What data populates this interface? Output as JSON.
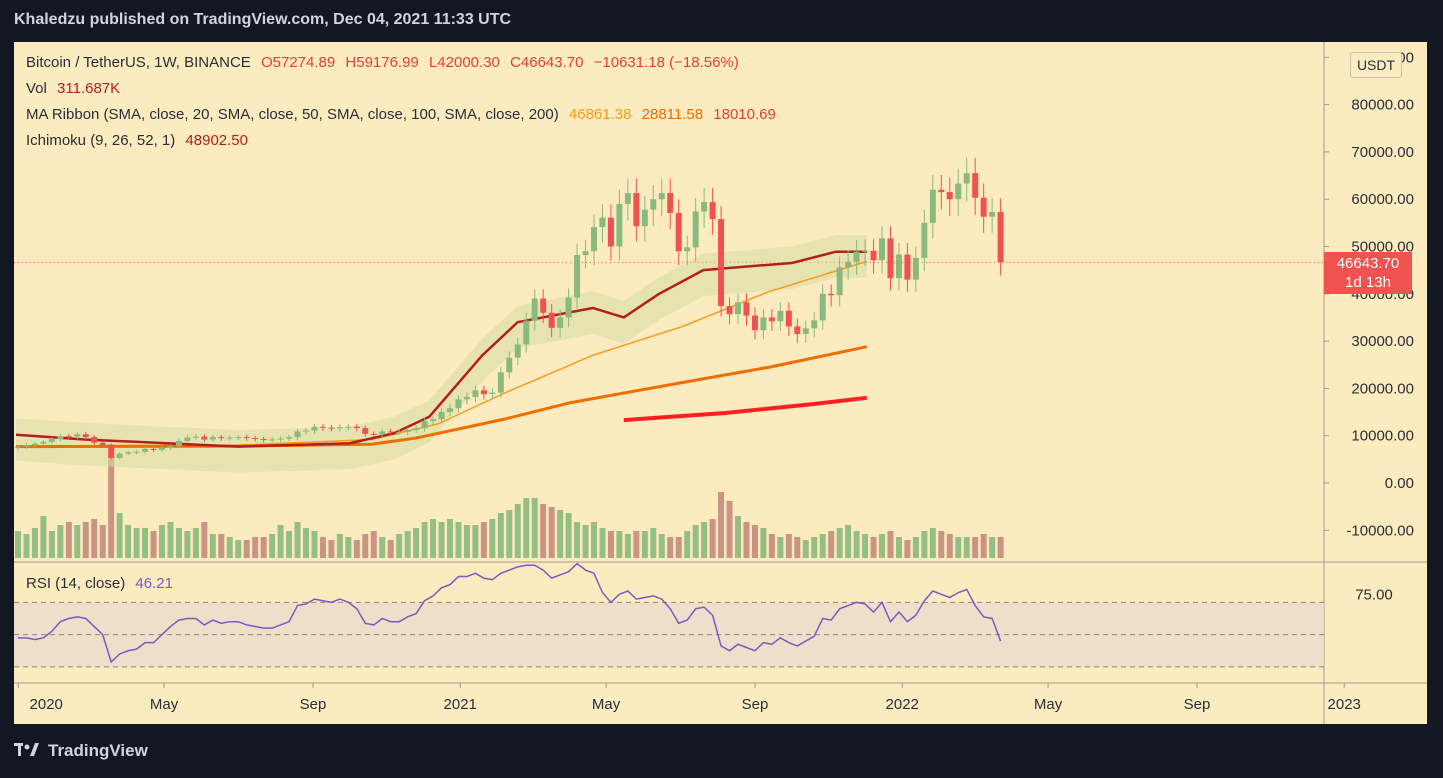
{
  "header": {
    "title": "Khaledzu published on TradingView.com, Dec 04, 2021 11:33 UTC"
  },
  "legend": {
    "symbol": "Bitcoin / TetherUS, 1W, BINANCE",
    "open": "O57274.89",
    "high": "H59176.99",
    "low": "L42000.30",
    "close": "C46643.70",
    "change": "−10631.18 (−18.56%)",
    "vol_label": "Vol",
    "vol_value": "311.687K",
    "ma_label": "MA Ribbon (SMA, close, 20, SMA, close, 50, SMA, close, 100, SMA, close, 200)",
    "ma_20": "46861.38",
    "ma_50": "28811.58",
    "ma_100": "18010.69",
    "ichimoku_label": "Ichimoku (9, 26, 52, 1)",
    "ichimoku_value": "48902.50",
    "rsi_label": "RSI (14, close)",
    "rsi_value": "46.21"
  },
  "currency_badge": "USDT",
  "price_badge": {
    "price": "46643.70",
    "countdown": "1d 13h"
  },
  "colors": {
    "up": "#89b97c",
    "down": "#ef5350",
    "ma20": "#f59b1a",
    "ma50": "#ef6c00",
    "ma100": "#ff1f1f",
    "ichimoku": "#b71c1c",
    "rsi": "#7e57c2",
    "background": "#fdebc0"
  },
  "chart_data": [
    {
      "type": "candlestick",
      "x_start": "2019-12-30",
      "x_step": "1 week",
      "ylim": [
        -15000,
        90000
      ],
      "y_ticks": [
        "90000.00",
        "80000.00",
        "70000.00",
        "60000.00",
        "50000.00",
        "40000.00",
        "30000.00",
        "20000.00",
        "10000.00",
        "0.00",
        "-10000.00"
      ],
      "x_ticks": [
        "2020",
        "May",
        "Sep",
        "2021",
        "May",
        "Sep",
        "2022",
        "May",
        "Sep",
        "2023"
      ],
      "close": [
        7700,
        8000,
        8300,
        8700,
        9300,
        9900,
        9800,
        10300,
        9700,
        8500,
        8000,
        5300,
        6200,
        6500,
        6600,
        7200,
        7000,
        7500,
        7800,
        8900,
        9600,
        9800,
        9200,
        9700,
        9500,
        9600,
        9700,
        9500,
        9300,
        9100,
        9200,
        9400,
        9700,
        10900,
        11100,
        11900,
        11700,
        11600,
        11800,
        11900,
        11600,
        10400,
        10300,
        10900,
        10800,
        10800,
        11200,
        11600,
        13100,
        13500,
        15000,
        15800,
        17700,
        18200,
        19600,
        18800,
        19100,
        23400,
        26500,
        29300,
        34300,
        39000,
        36000,
        32800,
        35000,
        39200,
        48200,
        49000,
        54100,
        56100,
        50000,
        59000,
        61300,
        54300,
        57800,
        60000,
        61300,
        57100,
        49000,
        49800,
        57400,
        59400,
        55800,
        37400,
        35700,
        38200,
        35400,
        32300,
        35000,
        34200,
        36400,
        33100,
        31500,
        32700,
        34400,
        40000,
        39700,
        45600,
        46800,
        48900,
        49100,
        47100,
        51700,
        43300,
        48300,
        43000,
        47600,
        55000,
        62000,
        61500,
        60000,
        63300,
        65500,
        60300,
        56300,
        57300,
        46644
      ],
      "ma20_points": [
        [
          2019.995,
          7700
        ],
        [
          2020.2,
          7900
        ],
        [
          2020.5,
          8000
        ],
        [
          2020.8,
          9200
        ],
        [
          2020.95,
          12500
        ],
        [
          2021.1,
          19000
        ],
        [
          2021.3,
          27000
        ],
        [
          2021.5,
          33000
        ],
        [
          2021.7,
          40500
        ],
        [
          2021.92,
          46861
        ]
      ],
      "ma50_points": [
        [
          2019.995,
          7700
        ],
        [
          2020.5,
          7800
        ],
        [
          2020.8,
          8200
        ],
        [
          2020.9,
          9500
        ],
        [
          2021.1,
          13500
        ],
        [
          2021.25,
          17000
        ],
        [
          2021.5,
          21200
        ],
        [
          2021.7,
          24500
        ],
        [
          2021.92,
          28812
        ]
      ],
      "ma100_points": [
        [
          2021.37,
          13300
        ],
        [
          2021.6,
          14800
        ],
        [
          2021.8,
          16700
        ],
        [
          2021.92,
          18011
        ]
      ],
      "ichimoku_points": [
        [
          2019.995,
          10200
        ],
        [
          2020.15,
          9200
        ],
        [
          2020.5,
          7700
        ],
        [
          2020.75,
          8400
        ],
        [
          2020.85,
          10500
        ],
        [
          2020.93,
          14000
        ],
        [
          2021.05,
          27000
        ],
        [
          2021.13,
          34000
        ],
        [
          2021.3,
          37000
        ],
        [
          2021.37,
          35000
        ],
        [
          2021.45,
          40000
        ],
        [
          2021.55,
          45000
        ],
        [
          2021.68,
          46000
        ],
        [
          2021.75,
          46500
        ],
        [
          2021.85,
          48900
        ],
        [
          2021.92,
          48902
        ]
      ]
    },
    {
      "type": "bar",
      "name": "Vol",
      "values": [
        0.45,
        0.4,
        0.5,
        0.7,
        0.45,
        0.55,
        0.6,
        0.55,
        0.6,
        0.65,
        0.55,
        1.9,
        0.75,
        0.55,
        0.5,
        0.5,
        0.45,
        0.55,
        0.6,
        0.5,
        0.45,
        0.5,
        0.6,
        0.4,
        0.4,
        0.35,
        0.3,
        0.3,
        0.35,
        0.35,
        0.4,
        0.55,
        0.45,
        0.6,
        0.5,
        0.45,
        0.35,
        0.3,
        0.4,
        0.35,
        0.3,
        0.4,
        0.45,
        0.35,
        0.3,
        0.4,
        0.45,
        0.5,
        0.6,
        0.65,
        0.6,
        0.65,
        0.6,
        0.55,
        0.55,
        0.6,
        0.65,
        0.75,
        0.8,
        0.9,
        1.0,
        1.0,
        0.9,
        0.85,
        0.8,
        0.75,
        0.6,
        0.55,
        0.6,
        0.5,
        0.45,
        0.45,
        0.4,
        0.45,
        0.45,
        0.5,
        0.4,
        0.35,
        0.35,
        0.45,
        0.55,
        0.6,
        0.65,
        1.1,
        0.95,
        0.7,
        0.6,
        0.55,
        0.5,
        0.4,
        0.35,
        0.4,
        0.35,
        0.3,
        0.35,
        0.4,
        0.45,
        0.5,
        0.55,
        0.45,
        0.4,
        0.35,
        0.4,
        0.45,
        0.35,
        0.3,
        0.35,
        0.45,
        0.5,
        0.45,
        0.4,
        0.35,
        0.35,
        0.35,
        0.4,
        0.35,
        0.35
      ]
    },
    {
      "type": "line",
      "name": "RSI (14, close)",
      "ylim": [
        20,
        95
      ],
      "y_ticks": [
        "75.00"
      ],
      "bands": [
        70,
        50,
        30
      ],
      "values": [
        48,
        48,
        47,
        48,
        52,
        58,
        60,
        61,
        60,
        55,
        50,
        33,
        38,
        40,
        41,
        45,
        45,
        50,
        55,
        59,
        60,
        60,
        56,
        59,
        57,
        58,
        58,
        56,
        55,
        54,
        54,
        56,
        58,
        68,
        69,
        72,
        71,
        70,
        72,
        70,
        66,
        57,
        56,
        60,
        58,
        58,
        61,
        63,
        71,
        74,
        79,
        81,
        86,
        86,
        88,
        85,
        84,
        88,
        90,
        92,
        93,
        93,
        90,
        85,
        87,
        89,
        94,
        90,
        88,
        76,
        70,
        75,
        77,
        72,
        73,
        74,
        72,
        66,
        57,
        59,
        66,
        67,
        62,
        43,
        40,
        44,
        42,
        40,
        45,
        44,
        48,
        45,
        43,
        46,
        49,
        60,
        59,
        66,
        68,
        70,
        69,
        64,
        70,
        58,
        64,
        58,
        62,
        71,
        77,
        75,
        73,
        76,
        78,
        68,
        61,
        60,
        46
      ]
    }
  ]
}
